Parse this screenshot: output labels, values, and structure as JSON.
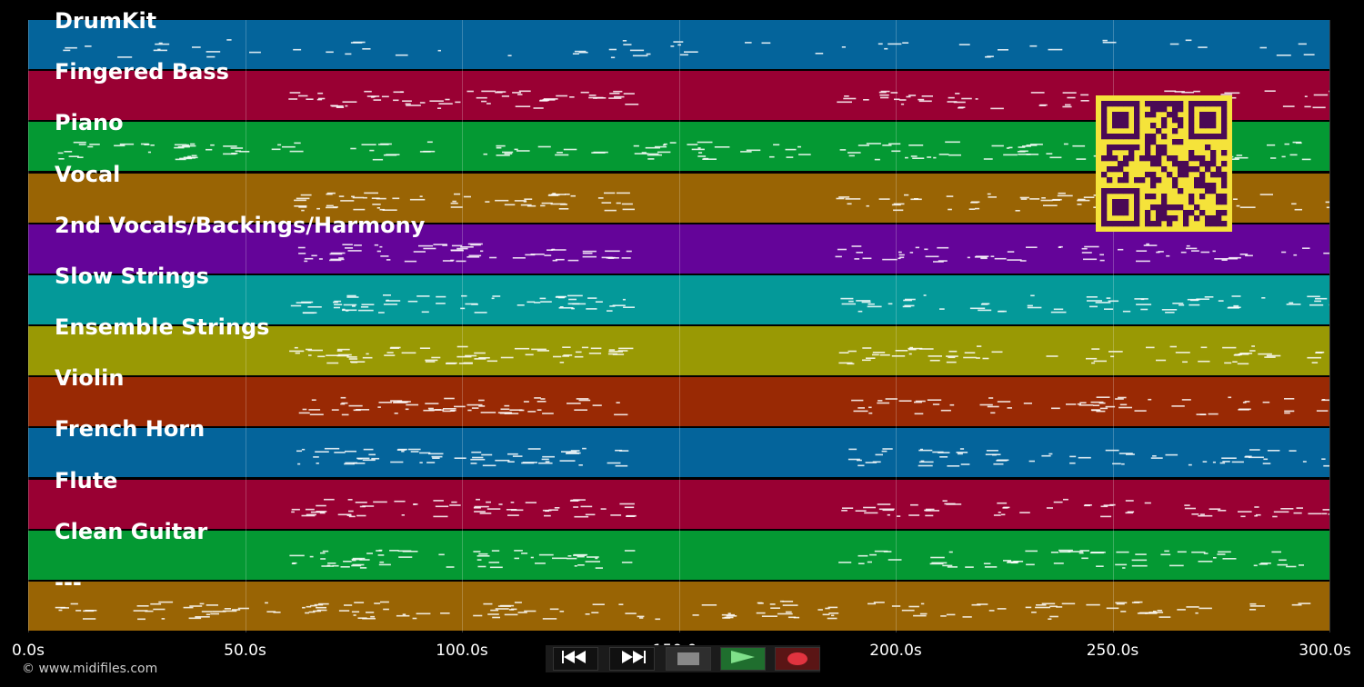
{
  "tracks": [
    {
      "name": "DrumKit",
      "color": "#04649b"
    },
    {
      "name": "Fingered Bass",
      "color": "#990033"
    },
    {
      "name": "Piano",
      "color": "#049933"
    },
    {
      "name": "Vocal",
      "color": "#996404"
    },
    {
      "name": "2nd Vocals/Backings/Harmony",
      "color": "#640499"
    },
    {
      "name": "Slow Strings",
      "color": "#049999"
    },
    {
      "name": "Ensemble Strings",
      "color": "#999904"
    },
    {
      "name": "Violin",
      "color": "#992904"
    },
    {
      "name": "French Horn",
      "color": "#04649b"
    },
    {
      "name": "Flute",
      "color": "#990033"
    },
    {
      "name": "Clean Guitar",
      "color": "#049933"
    },
    {
      "name": "---",
      "color": "#996404"
    }
  ],
  "timeline": {
    "ticks": [
      "0.0s",
      "50.0s",
      "100.0s",
      "150.0s",
      "200.0s",
      "250.0s",
      "300.0s"
    ],
    "max_seconds": 300
  },
  "copyright": "© www.midifiles.com",
  "transport": {
    "rewind_icon": "rewind-icon",
    "forward_icon": "fast-forward-icon",
    "stop_icon": "stop-icon",
    "play_icon": "play-icon",
    "record_icon": "record-icon"
  },
  "qr_icon": "qr-code-icon"
}
